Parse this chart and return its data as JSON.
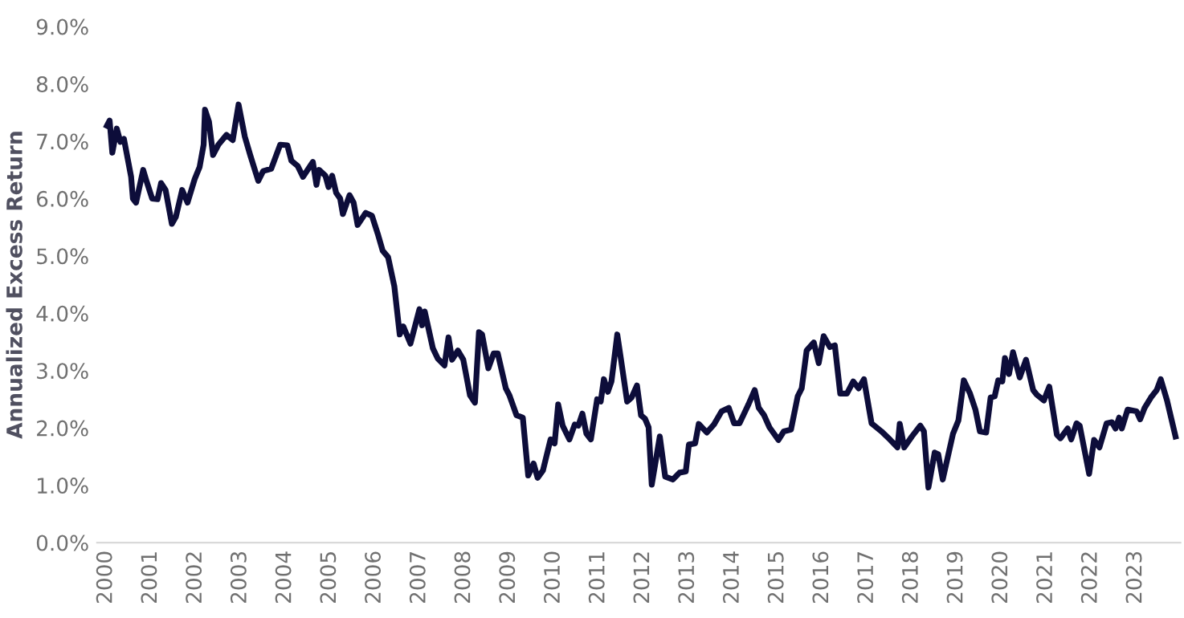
{
  "chart_data": {
    "type": "line",
    "ylabel": "Annualized Excess Return",
    "xlim": [
      1999.8,
      2024.0
    ],
    "xticks": [
      2000,
      2001,
      2002,
      2003,
      2004,
      2005,
      2006,
      2007,
      2008,
      2009,
      2010,
      2011,
      2012,
      2013,
      2014,
      2015,
      2016,
      2017,
      2018,
      2019,
      2020,
      2021,
      2022,
      2023
    ],
    "ylim": [
      0,
      9
    ],
    "yticks": [
      {
        "value": 0,
        "label": "0.0%"
      },
      {
        "value": 1,
        "label": "1.0%"
      },
      {
        "value": 2,
        "label": "2.0%"
      },
      {
        "value": 3,
        "label": "3.0%"
      },
      {
        "value": 4,
        "label": "4.0%"
      },
      {
        "value": 5,
        "label": "5.0%"
      },
      {
        "value": 6,
        "label": "6.0%"
      },
      {
        "value": 7,
        "label": "7.0%"
      },
      {
        "value": 8,
        "label": "8.0%"
      },
      {
        "value": 9,
        "label": "9.0%"
      }
    ],
    "grid": false,
    "legend": false,
    "marker": "none",
    "line_style": "solid",
    "series": [
      {
        "color": "#0d0d3a",
        "x": [
          2000.02,
          2000.08,
          2000.14,
          2000.24,
          2000.32,
          2000.4,
          2000.56,
          2000.6,
          2000.67,
          2000.83,
          2000.91,
          2001.03,
          2001.15,
          2001.23,
          2001.33,
          2001.47,
          2001.56,
          2001.7,
          2001.82,
          2001.98,
          2002.09,
          2002.18,
          2002.21,
          2002.3,
          2002.39,
          2002.51,
          2002.69,
          2002.83,
          2002.96,
          2003.1,
          2003.22,
          2003.4,
          2003.51,
          2003.69,
          2003.89,
          2004.05,
          2004.14,
          2004.28,
          2004.4,
          2004.62,
          2004.7,
          2004.76,
          2004.9,
          2004.97,
          2005.05,
          2005.14,
          2005.23,
          2005.29,
          2005.44,
          2005.53,
          2005.62,
          2005.8,
          2005.94,
          2006.08,
          2006.18,
          2006.3,
          2006.44,
          2006.56,
          2006.64,
          2006.8,
          2007.0,
          2007.06,
          2007.12,
          2007.3,
          2007.41,
          2007.56,
          2007.65,
          2007.73,
          2007.86,
          2007.98,
          2008.13,
          2008.24,
          2008.33,
          2008.4,
          2008.54,
          2008.66,
          2008.75,
          2008.93,
          2009.01,
          2009.17,
          2009.31,
          2009.43,
          2009.55,
          2009.64,
          2009.76,
          2009.93,
          2010.02,
          2010.1,
          2010.2,
          2010.35,
          2010.47,
          2010.55,
          2010.64,
          2010.73,
          2010.83,
          2010.97,
          2011.05,
          2011.12,
          2011.21,
          2011.29,
          2011.42,
          2011.5,
          2011.64,
          2011.74,
          2011.86,
          2011.95,
          2012.04,
          2012.12,
          2012.19,
          2012.37,
          2012.49,
          2012.66,
          2012.81,
          2012.95,
          2013.02,
          2013.16,
          2013.24,
          2013.42,
          2013.58,
          2013.75,
          2013.91,
          2014.03,
          2014.15,
          2014.35,
          2014.49,
          2014.58,
          2014.7,
          2014.82,
          2015.02,
          2015.14,
          2015.3,
          2015.45,
          2015.54,
          2015.65,
          2015.81,
          2015.92,
          2016.03,
          2016.17,
          2016.28,
          2016.4,
          2016.55,
          2016.69,
          2016.81,
          2016.93,
          2017.1,
          2017.32,
          2017.52,
          2017.68,
          2017.73,
          2017.83,
          2018.0,
          2018.19,
          2018.27,
          2018.37,
          2018.51,
          2018.59,
          2018.69,
          2018.92,
          2019.04,
          2019.16,
          2019.3,
          2019.42,
          2019.52,
          2019.66,
          2019.76,
          2019.85,
          2019.93,
          2020.02,
          2020.08,
          2020.17,
          2020.26,
          2020.41,
          2020.55,
          2020.71,
          2020.79,
          2020.95,
          2021.07,
          2021.24,
          2021.32,
          2021.48,
          2021.56,
          2021.68,
          2021.75,
          2021.96,
          2022.07,
          2022.19,
          2022.35,
          2022.47,
          2022.55,
          2022.63,
          2022.69,
          2022.82,
          2023.02,
          2023.1,
          2023.2,
          2023.34,
          2023.47,
          2023.56,
          2023.7,
          2023.89
        ],
        "values": [
          7.27,
          7.36,
          6.8,
          7.22,
          6.99,
          7.04,
          6.38,
          6.0,
          5.93,
          6.5,
          6.29,
          6.0,
          5.99,
          6.27,
          6.15,
          5.56,
          5.68,
          6.15,
          5.93,
          6.34,
          6.55,
          6.94,
          7.55,
          7.34,
          6.76,
          6.94,
          7.11,
          7.02,
          7.64,
          7.08,
          6.76,
          6.31,
          6.48,
          6.52,
          6.94,
          6.93,
          6.66,
          6.57,
          6.38,
          6.64,
          6.24,
          6.5,
          6.4,
          6.2,
          6.4,
          6.1,
          6.0,
          5.73,
          6.06,
          5.93,
          5.54,
          5.75,
          5.7,
          5.36,
          5.09,
          4.98,
          4.47,
          3.63,
          3.77,
          3.47,
          4.07,
          3.79,
          4.03,
          3.39,
          3.21,
          3.09,
          3.58,
          3.19,
          3.35,
          3.19,
          2.57,
          2.44,
          3.67,
          3.63,
          3.04,
          3.3,
          3.3,
          2.69,
          2.57,
          2.22,
          2.18,
          1.17,
          1.38,
          1.13,
          1.26,
          1.8,
          1.73,
          2.41,
          2.04,
          1.8,
          2.06,
          2.04,
          2.25,
          1.9,
          1.8,
          2.5,
          2.46,
          2.85,
          2.63,
          2.81,
          3.63,
          3.21,
          2.46,
          2.53,
          2.74,
          2.22,
          2.16,
          2.01,
          1.01,
          1.85,
          1.15,
          1.1,
          1.22,
          1.24,
          1.71,
          1.73,
          2.07,
          1.92,
          2.06,
          2.29,
          2.35,
          2.08,
          2.08,
          2.41,
          2.66,
          2.35,
          2.22,
          2.01,
          1.79,
          1.94,
          1.97,
          2.55,
          2.69,
          3.35,
          3.49,
          3.13,
          3.6,
          3.41,
          3.44,
          2.6,
          2.6,
          2.81,
          2.69,
          2.85,
          2.08,
          1.94,
          1.79,
          1.66,
          2.07,
          1.66,
          1.85,
          2.04,
          1.94,
          0.96,
          1.57,
          1.54,
          1.1,
          1.9,
          2.13,
          2.83,
          2.6,
          2.32,
          1.94,
          1.92,
          2.53,
          2.55,
          2.83,
          2.81,
          3.22,
          2.94,
          3.32,
          2.88,
          3.19,
          2.66,
          2.58,
          2.48,
          2.72,
          1.88,
          1.82,
          1.99,
          1.8,
          2.08,
          2.04,
          1.2,
          1.79,
          1.66,
          2.08,
          2.1,
          1.99,
          2.18,
          1.99,
          2.32,
          2.29,
          2.15,
          2.35,
          2.53,
          2.66,
          2.85,
          2.48,
          1.85
        ]
      }
    ]
  }
}
